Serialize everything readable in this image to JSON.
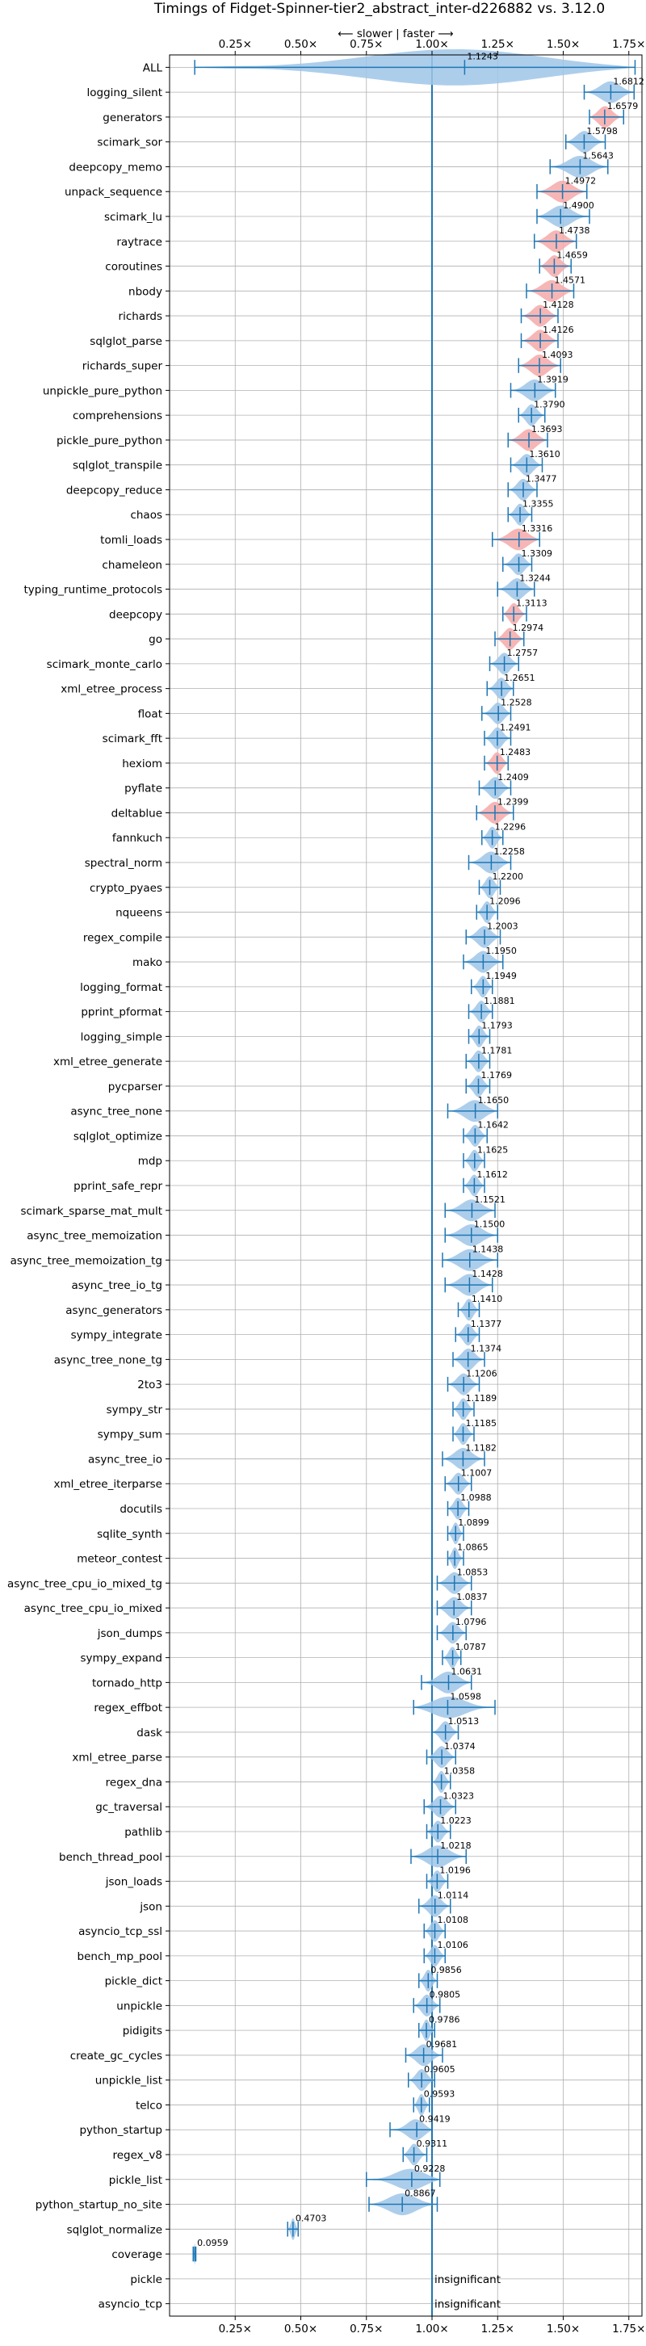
{
  "chart_data": {
    "type": "violin",
    "title": "Timings of Fidget-Spinner-tier2_abstract_inter-d226882 vs. 3.12.0",
    "direction_annotation": "⟵ slower | faster ⟶",
    "xlim": [
      0.0,
      1.8
    ],
    "xticks": [
      0.25,
      0.5,
      0.75,
      1.0,
      1.25,
      1.5,
      1.75
    ],
    "xtick_labels": [
      "0.25×",
      "0.50×",
      "0.75×",
      "1.00×",
      "1.25×",
      "1.50×",
      "1.75×"
    ],
    "reference_line": 1.0,
    "grid": true,
    "colors": {
      "faster": "#9fc5e8",
      "slower": "#f4a9a8",
      "bar": "#1f77b4",
      "ref_line": "#1f77b4",
      "grid": "#b0b0b0"
    },
    "benchmarks": [
      {
        "name": "ALL",
        "value": 1.1243,
        "min": 0.0959,
        "max": 1.7737,
        "width": 1.7,
        "value_text": "1.1243"
      },
      {
        "name": "logging_silent",
        "value": 1.6812,
        "min": 1.58,
        "max": 1.77,
        "value_text": "1.6812"
      },
      {
        "name": "generators",
        "value": 1.6579,
        "min": 1.6,
        "max": 1.73,
        "highlight": true,
        "value_text": "1.6579"
      },
      {
        "name": "scimark_sor",
        "value": 1.5798,
        "min": 1.51,
        "max": 1.66,
        "value_text": "1.5798"
      },
      {
        "name": "deepcopy_memo",
        "value": 1.5643,
        "min": 1.45,
        "max": 1.67,
        "value_text": "1.5643"
      },
      {
        "name": "unpack_sequence",
        "value": 1.4972,
        "min": 1.4,
        "max": 1.59,
        "highlight": true,
        "value_text": "1.4972"
      },
      {
        "name": "scimark_lu",
        "value": 1.49,
        "min": 1.4,
        "max": 1.6,
        "value_text": "1.4900"
      },
      {
        "name": "raytrace",
        "value": 1.4738,
        "min": 1.39,
        "max": 1.55,
        "highlight": true,
        "value_text": "1.4738"
      },
      {
        "name": "coroutines",
        "value": 1.4659,
        "min": 1.41,
        "max": 1.53,
        "highlight": true,
        "value_text": "1.4659"
      },
      {
        "name": "nbody",
        "value": 1.4571,
        "min": 1.36,
        "max": 1.54,
        "highlight": true,
        "value_text": "1.4571"
      },
      {
        "name": "richards",
        "value": 1.4128,
        "min": 1.34,
        "max": 1.48,
        "highlight": true,
        "value_text": "1.4128"
      },
      {
        "name": "sqlglot_parse",
        "value": 1.4126,
        "min": 1.34,
        "max": 1.48,
        "highlight": true,
        "value_text": "1.4126"
      },
      {
        "name": "richards_super",
        "value": 1.4093,
        "min": 1.33,
        "max": 1.49,
        "highlight": true,
        "value_text": "1.4093"
      },
      {
        "name": "unpickle_pure_python",
        "value": 1.3919,
        "min": 1.3,
        "max": 1.47,
        "value_text": "1.3919"
      },
      {
        "name": "comprehensions",
        "value": 1.379,
        "min": 1.33,
        "max": 1.43,
        "value_text": "1.3790"
      },
      {
        "name": "pickle_pure_python",
        "value": 1.3693,
        "min": 1.29,
        "max": 1.44,
        "highlight": true,
        "value_text": "1.3693"
      },
      {
        "name": "sqlglot_transpile",
        "value": 1.361,
        "min": 1.3,
        "max": 1.42,
        "value_text": "1.3610"
      },
      {
        "name": "deepcopy_reduce",
        "value": 1.3477,
        "min": 1.29,
        "max": 1.4,
        "value_text": "1.3477"
      },
      {
        "name": "chaos",
        "value": 1.3355,
        "min": 1.29,
        "max": 1.38,
        "value_text": "1.3355"
      },
      {
        "name": "tomli_loads",
        "value": 1.3316,
        "min": 1.23,
        "max": 1.41,
        "highlight": true,
        "value_text": "1.3316"
      },
      {
        "name": "chameleon",
        "value": 1.3309,
        "min": 1.27,
        "max": 1.38,
        "value_text": "1.3309"
      },
      {
        "name": "typing_runtime_protocols",
        "value": 1.3244,
        "min": 1.25,
        "max": 1.39,
        "value_text": "1.3244"
      },
      {
        "name": "deepcopy",
        "value": 1.3113,
        "min": 1.27,
        "max": 1.36,
        "highlight": true,
        "value_text": "1.3113"
      },
      {
        "name": "go",
        "value": 1.2974,
        "min": 1.24,
        "max": 1.35,
        "highlight": true,
        "value_text": "1.2974"
      },
      {
        "name": "scimark_monte_carlo",
        "value": 1.2757,
        "min": 1.22,
        "max": 1.33,
        "value_text": "1.2757"
      },
      {
        "name": "xml_etree_process",
        "value": 1.2651,
        "min": 1.21,
        "max": 1.31,
        "value_text": "1.2651"
      },
      {
        "name": "float",
        "value": 1.2528,
        "min": 1.19,
        "max": 1.3,
        "value_text": "1.2528"
      },
      {
        "name": "scimark_fft",
        "value": 1.2491,
        "min": 1.2,
        "max": 1.3,
        "value_text": "1.2491"
      },
      {
        "name": "hexiom",
        "value": 1.2483,
        "min": 1.2,
        "max": 1.29,
        "highlight": true,
        "value_text": "1.2483"
      },
      {
        "name": "pyflate",
        "value": 1.2409,
        "min": 1.18,
        "max": 1.3,
        "value_text": "1.2409"
      },
      {
        "name": "deltablue",
        "value": 1.2399,
        "min": 1.17,
        "max": 1.31,
        "highlight": true,
        "value_text": "1.2399"
      },
      {
        "name": "fannkuch",
        "value": 1.2296,
        "min": 1.19,
        "max": 1.27,
        "value_text": "1.2296"
      },
      {
        "name": "spectral_norm",
        "value": 1.2258,
        "min": 1.14,
        "max": 1.3,
        "value_text": "1.2258"
      },
      {
        "name": "crypto_pyaes",
        "value": 1.22,
        "min": 1.18,
        "max": 1.26,
        "value_text": "1.2200"
      },
      {
        "name": "nqueens",
        "value": 1.2096,
        "min": 1.17,
        "max": 1.25,
        "value_text": "1.2096"
      },
      {
        "name": "regex_compile",
        "value": 1.2003,
        "min": 1.13,
        "max": 1.26,
        "value_text": "1.2003"
      },
      {
        "name": "mako",
        "value": 1.195,
        "min": 1.12,
        "max": 1.27,
        "value_text": "1.1950"
      },
      {
        "name": "logging_format",
        "value": 1.1949,
        "min": 1.15,
        "max": 1.23,
        "value_text": "1.1949"
      },
      {
        "name": "pprint_pformat",
        "value": 1.1881,
        "min": 1.14,
        "max": 1.23,
        "value_text": "1.1881"
      },
      {
        "name": "logging_simple",
        "value": 1.1793,
        "min": 1.14,
        "max": 1.22,
        "value_text": "1.1793"
      },
      {
        "name": "xml_etree_generate",
        "value": 1.1781,
        "min": 1.13,
        "max": 1.22,
        "value_text": "1.1781"
      },
      {
        "name": "pycparser",
        "value": 1.1769,
        "min": 1.13,
        "max": 1.22,
        "value_text": "1.1769"
      },
      {
        "name": "async_tree_none",
        "value": 1.165,
        "min": 1.06,
        "max": 1.25,
        "value_text": "1.1650"
      },
      {
        "name": "sqlglot_optimize",
        "value": 1.1642,
        "min": 1.12,
        "max": 1.21,
        "value_text": "1.1642"
      },
      {
        "name": "mdp",
        "value": 1.1625,
        "min": 1.12,
        "max": 1.2,
        "value_text": "1.1625"
      },
      {
        "name": "pprint_safe_repr",
        "value": 1.1612,
        "min": 1.12,
        "max": 1.2,
        "value_text": "1.1612"
      },
      {
        "name": "scimark_sparse_mat_mult",
        "value": 1.1521,
        "min": 1.05,
        "max": 1.24,
        "value_text": "1.1521"
      },
      {
        "name": "async_tree_memoization",
        "value": 1.15,
        "min": 1.05,
        "max": 1.25,
        "value_text": "1.1500"
      },
      {
        "name": "async_tree_memoization_tg",
        "value": 1.1438,
        "min": 1.04,
        "max": 1.25,
        "value_text": "1.1438"
      },
      {
        "name": "async_tree_io_tg",
        "value": 1.1428,
        "min": 1.05,
        "max": 1.23,
        "value_text": "1.1428"
      },
      {
        "name": "async_generators",
        "value": 1.141,
        "min": 1.1,
        "max": 1.18,
        "value_text": "1.1410"
      },
      {
        "name": "sympy_integrate",
        "value": 1.1377,
        "min": 1.09,
        "max": 1.18,
        "value_text": "1.1377"
      },
      {
        "name": "async_tree_none_tg",
        "value": 1.1374,
        "min": 1.08,
        "max": 1.2,
        "value_text": "1.1374"
      },
      {
        "name": "2to3",
        "value": 1.1206,
        "min": 1.06,
        "max": 1.18,
        "value_text": "1.1206"
      },
      {
        "name": "sympy_str",
        "value": 1.1189,
        "min": 1.08,
        "max": 1.16,
        "value_text": "1.1189"
      },
      {
        "name": "sympy_sum",
        "value": 1.1185,
        "min": 1.08,
        "max": 1.16,
        "value_text": "1.1185"
      },
      {
        "name": "async_tree_io",
        "value": 1.1182,
        "min": 1.04,
        "max": 1.2,
        "value_text": "1.1182"
      },
      {
        "name": "xml_etree_iterparse",
        "value": 1.1007,
        "min": 1.05,
        "max": 1.15,
        "value_text": "1.1007"
      },
      {
        "name": "docutils",
        "value": 1.0988,
        "min": 1.06,
        "max": 1.14,
        "value_text": "1.0988"
      },
      {
        "name": "sqlite_synth",
        "value": 1.0899,
        "min": 1.06,
        "max": 1.12,
        "value_text": "1.0899"
      },
      {
        "name": "meteor_contest",
        "value": 1.0865,
        "min": 1.06,
        "max": 1.12,
        "value_text": "1.0865"
      },
      {
        "name": "async_tree_cpu_io_mixed_tg",
        "value": 1.0853,
        "min": 1.02,
        "max": 1.15,
        "value_text": "1.0853"
      },
      {
        "name": "async_tree_cpu_io_mixed",
        "value": 1.0837,
        "min": 1.02,
        "max": 1.15,
        "value_text": "1.0837"
      },
      {
        "name": "json_dumps",
        "value": 1.0796,
        "min": 1.02,
        "max": 1.13,
        "value_text": "1.0796"
      },
      {
        "name": "sympy_expand",
        "value": 1.0787,
        "min": 1.04,
        "max": 1.11,
        "value_text": "1.0787"
      },
      {
        "name": "tornado_http",
        "value": 1.0631,
        "min": 0.96,
        "max": 1.15,
        "value_text": "1.0631"
      },
      {
        "name": "regex_effbot",
        "value": 1.0598,
        "min": 0.93,
        "max": 1.24,
        "value_text": "1.0598"
      },
      {
        "name": "dask",
        "value": 1.0513,
        "min": 1.0,
        "max": 1.1,
        "value_text": "1.0513"
      },
      {
        "name": "xml_etree_parse",
        "value": 1.0374,
        "min": 0.98,
        "max": 1.09,
        "value_text": "1.0374"
      },
      {
        "name": "regex_dna",
        "value": 1.0358,
        "min": 1.0,
        "max": 1.07,
        "value_text": "1.0358"
      },
      {
        "name": "gc_traversal",
        "value": 1.0323,
        "min": 0.97,
        "max": 1.09,
        "value_text": "1.0323"
      },
      {
        "name": "pathlib",
        "value": 1.0223,
        "min": 0.98,
        "max": 1.07,
        "value_text": "1.0223"
      },
      {
        "name": "bench_thread_pool",
        "value": 1.0218,
        "min": 0.92,
        "max": 1.13,
        "value_text": "1.0218"
      },
      {
        "name": "json_loads",
        "value": 1.0196,
        "min": 0.98,
        "max": 1.06,
        "value_text": "1.0196"
      },
      {
        "name": "json",
        "value": 1.0114,
        "min": 0.95,
        "max": 1.07,
        "value_text": "1.0114"
      },
      {
        "name": "asyncio_tcp_ssl",
        "value": 1.0108,
        "min": 0.97,
        "max": 1.05,
        "value_text": "1.0108"
      },
      {
        "name": "bench_mp_pool",
        "value": 1.0106,
        "min": 0.97,
        "max": 1.05,
        "value_text": "1.0106"
      },
      {
        "name": "pickle_dict",
        "value": 0.9856,
        "min": 0.95,
        "max": 1.02,
        "value_text": "0.9856"
      },
      {
        "name": "unpickle",
        "value": 0.9805,
        "min": 0.93,
        "max": 1.03,
        "value_text": "0.9805"
      },
      {
        "name": "pidigits",
        "value": 0.9786,
        "min": 0.95,
        "max": 1.01,
        "value_text": "0.9786"
      },
      {
        "name": "create_gc_cycles",
        "value": 0.9681,
        "min": 0.9,
        "max": 1.04,
        "value_text": "0.9681"
      },
      {
        "name": "unpickle_list",
        "value": 0.9605,
        "min": 0.91,
        "max": 1.01,
        "value_text": "0.9605"
      },
      {
        "name": "telco",
        "value": 0.9593,
        "min": 0.93,
        "max": 0.99,
        "value_text": "0.9593"
      },
      {
        "name": "python_startup",
        "value": 0.9419,
        "min": 0.84,
        "max": 1.0,
        "value_text": "0.9419"
      },
      {
        "name": "regex_v8",
        "value": 0.9311,
        "min": 0.89,
        "max": 0.98,
        "value_text": "0.9311"
      },
      {
        "name": "pickle_list",
        "value": 0.9228,
        "min": 0.75,
        "max": 1.03,
        "value_text": "0.9228"
      },
      {
        "name": "python_startup_no_site",
        "value": 0.8867,
        "min": 0.76,
        "max": 1.02,
        "value_text": "0.8867"
      },
      {
        "name": "sqlglot_normalize",
        "value": 0.4703,
        "min": 0.45,
        "max": 0.49,
        "value_text": "0.4703"
      },
      {
        "name": "coverage",
        "value": 0.0959,
        "min": 0.09,
        "max": 0.1,
        "value_text": "0.0959"
      },
      {
        "name": "pickle",
        "value": null,
        "insignificant": true,
        "value_text": "insignificant"
      },
      {
        "name": "asyncio_tcp",
        "value": null,
        "insignificant": true,
        "value_text": "insignificant"
      }
    ]
  }
}
